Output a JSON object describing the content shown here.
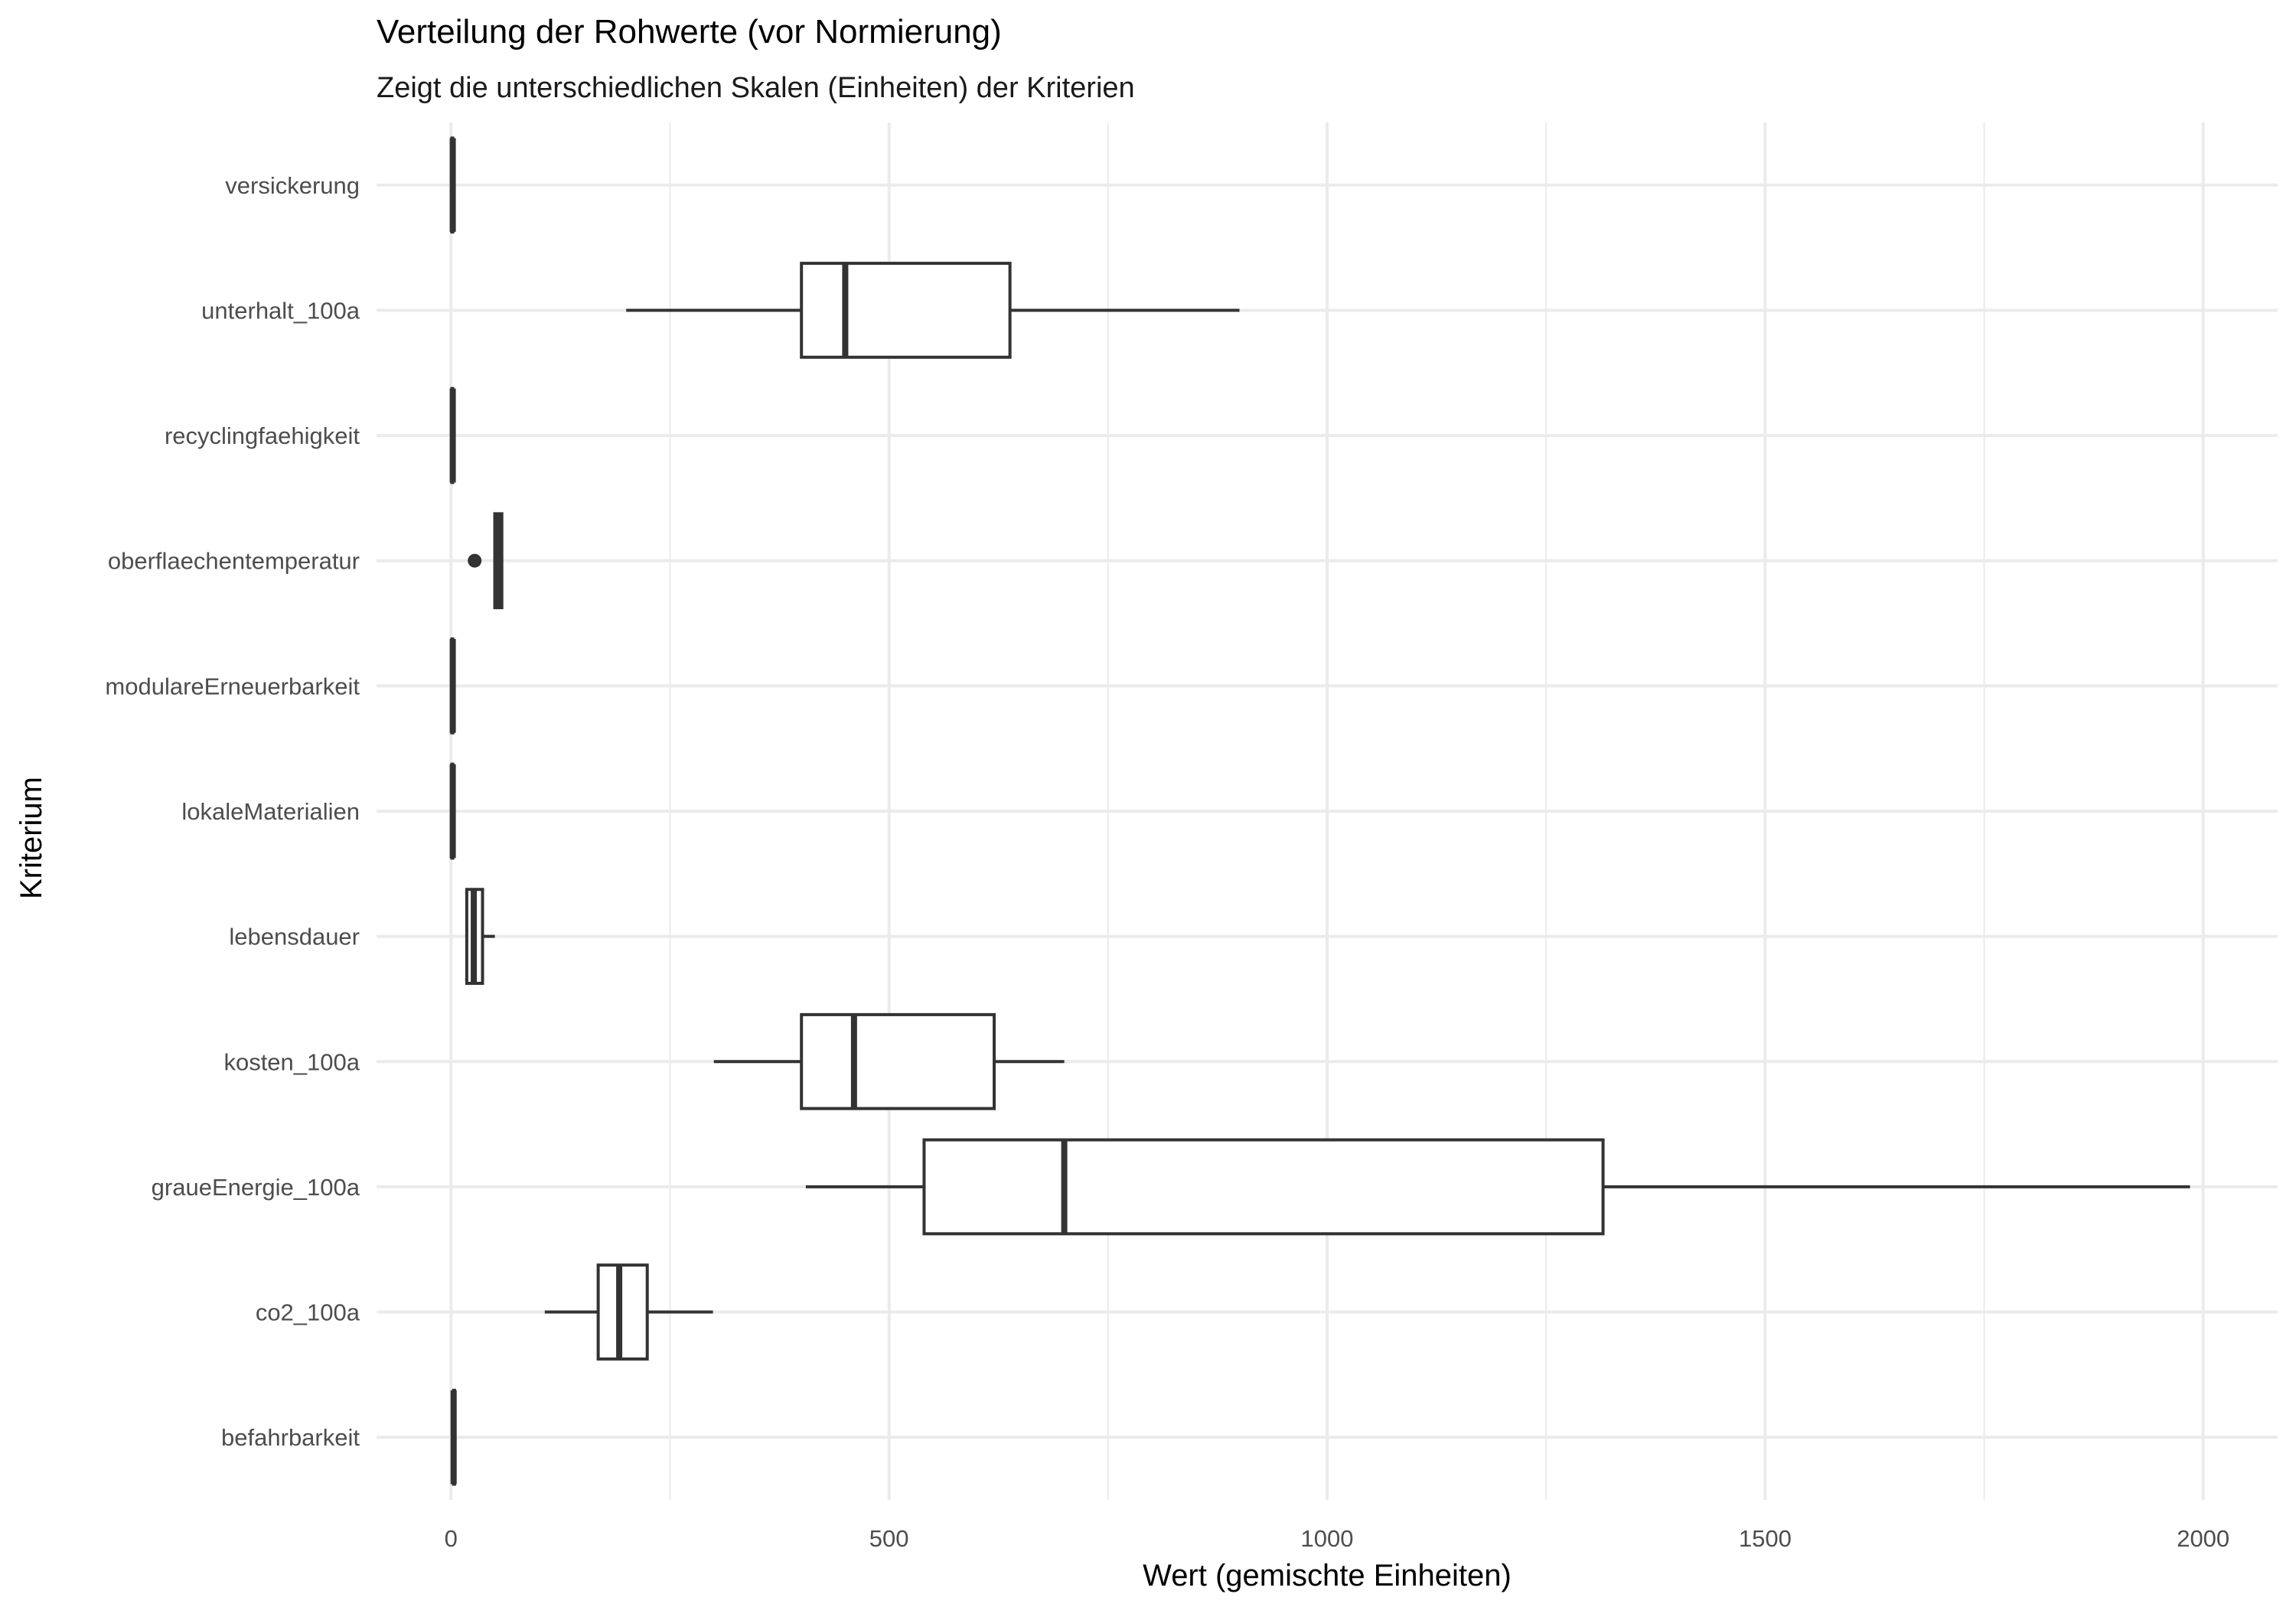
{
  "chart_data": {
    "type": "boxplot",
    "orientation": "horizontal",
    "title": "Verteilung der Rohwerte (vor Normierung)",
    "subtitle": "Zeigt die unterschiedlichen Skalen (Einheiten) der Kriterien",
    "xlabel": "Wert (gemischte Einheiten)",
    "ylabel": "Kriterium",
    "xlim": [
      -85,
      2085
    ],
    "x_ticks": [
      0,
      500,
      1000,
      1500,
      2000
    ],
    "grid": true,
    "legend": "none",
    "colors": {
      "box_stroke": "#333333",
      "box_fill": "#ffffff",
      "grid": "#ebebeb"
    },
    "categories": [
      "befahrbarkeit",
      "co2_100a",
      "graueEnergie_100a",
      "kosten_100a",
      "lebensdauer",
      "lokaleMaterialien",
      "modulareErneuerbarkeit",
      "oberflaechentemperatur",
      "recyclingfaehigkeit",
      "unterhalt_100a",
      "versickerung"
    ],
    "boxes": [
      {
        "category": "befahrbarkeit",
        "min": 3,
        "q1": 3,
        "median": 3,
        "q3": 4,
        "max": 5,
        "outliers": []
      },
      {
        "category": "co2_100a",
        "min": 107,
        "q1": 168,
        "median": 192,
        "q3": 224,
        "max": 299,
        "outliers": []
      },
      {
        "category": "graueEnergie_100a",
        "min": 405,
        "q1": 540,
        "median": 700,
        "q3": 1315,
        "max": 1985,
        "outliers": []
      },
      {
        "category": "kosten_100a",
        "min": 300,
        "q1": 400,
        "median": 460,
        "q3": 620,
        "max": 700,
        "outliers": []
      },
      {
        "category": "lebensdauer",
        "min": 18,
        "q1": 18,
        "median": 26,
        "q3": 36,
        "max": 50,
        "outliers": []
      },
      {
        "category": "lokaleMaterialien",
        "min": 1,
        "q1": 1,
        "median": 2,
        "q3": 2,
        "max": 3,
        "outliers": []
      },
      {
        "category": "modulareErneuerbarkeit",
        "min": 1,
        "q1": 1,
        "median": 2,
        "q3": 2,
        "max": 3,
        "outliers": []
      },
      {
        "category": "oberflaechentemperatur",
        "min": 50,
        "q1": 50,
        "median": 55,
        "q3": 58,
        "max": 58,
        "outliers": [
          27
        ]
      },
      {
        "category": "recyclingfaehigkeit",
        "min": 1,
        "q1": 1,
        "median": 2,
        "q3": 2,
        "max": 3,
        "outliers": []
      },
      {
        "category": "unterhalt_100a",
        "min": 200,
        "q1": 400,
        "median": 450,
        "q3": 638,
        "max": 900,
        "outliers": []
      },
      {
        "category": "versickerung",
        "min": 1,
        "q1": 1,
        "median": 2,
        "q3": 2,
        "max": 3,
        "outliers": []
      }
    ]
  }
}
